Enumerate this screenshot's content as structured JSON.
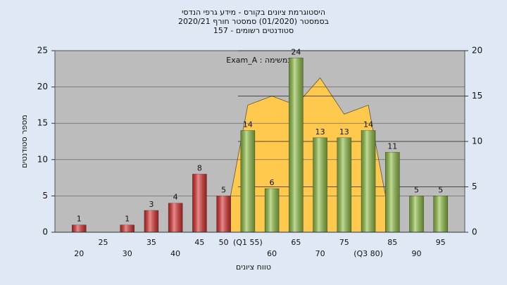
{
  "chart_data": {
    "type": "bar",
    "title": [
      "היסטוגרמת ציונים בקורס - מידע גרפי הנדסי",
      "בסמסטר  (01/2020)  סמסטר חורף  2020/21",
      "סטודנטים רשומים - 157"
    ],
    "annotation": "Exam_A : במשימה",
    "xlabel": "טווח ציונים",
    "ylabel": "מספר סטודנטים",
    "categories": [
      "20",
      "25",
      "30",
      "35",
      "40",
      "45",
      "50",
      "(Q1 55)",
      "60",
      "65",
      "70",
      "75",
      "(Q3 80)",
      "85",
      "90",
      "95"
    ],
    "values": [
      1,
      null,
      1,
      3,
      4,
      8,
      5,
      14,
      6,
      24,
      13,
      13,
      14,
      11,
      5,
      5
    ],
    "colors": [
      "#d92b2b",
      "#d92b2b",
      "#d92b2b",
      "#d92b2b",
      "#d92b2b",
      "#d92b2b",
      "#d92b2b",
      "#8cbd3f",
      "#8cbd3f",
      "#8cbd3f",
      "#8cbd3f",
      "#8cbd3f",
      "#8cbd3f",
      "#8cbd3f",
      "#8cbd3f",
      "#8cbd3f"
    ],
    "area": {
      "values": [
        null,
        null,
        null,
        null,
        null,
        null,
        0,
        14,
        15,
        14,
        17,
        13,
        14,
        0,
        null,
        null
      ],
      "color": "#ffc94d",
      "axis": "y2"
    },
    "ylim": [
      0,
      25
    ],
    "yticks": [
      0,
      5,
      10,
      15,
      20,
      25
    ],
    "y2lim": [
      0,
      20
    ],
    "y2ticks": [
      0,
      5,
      10,
      15,
      20
    ],
    "grid": true
  }
}
